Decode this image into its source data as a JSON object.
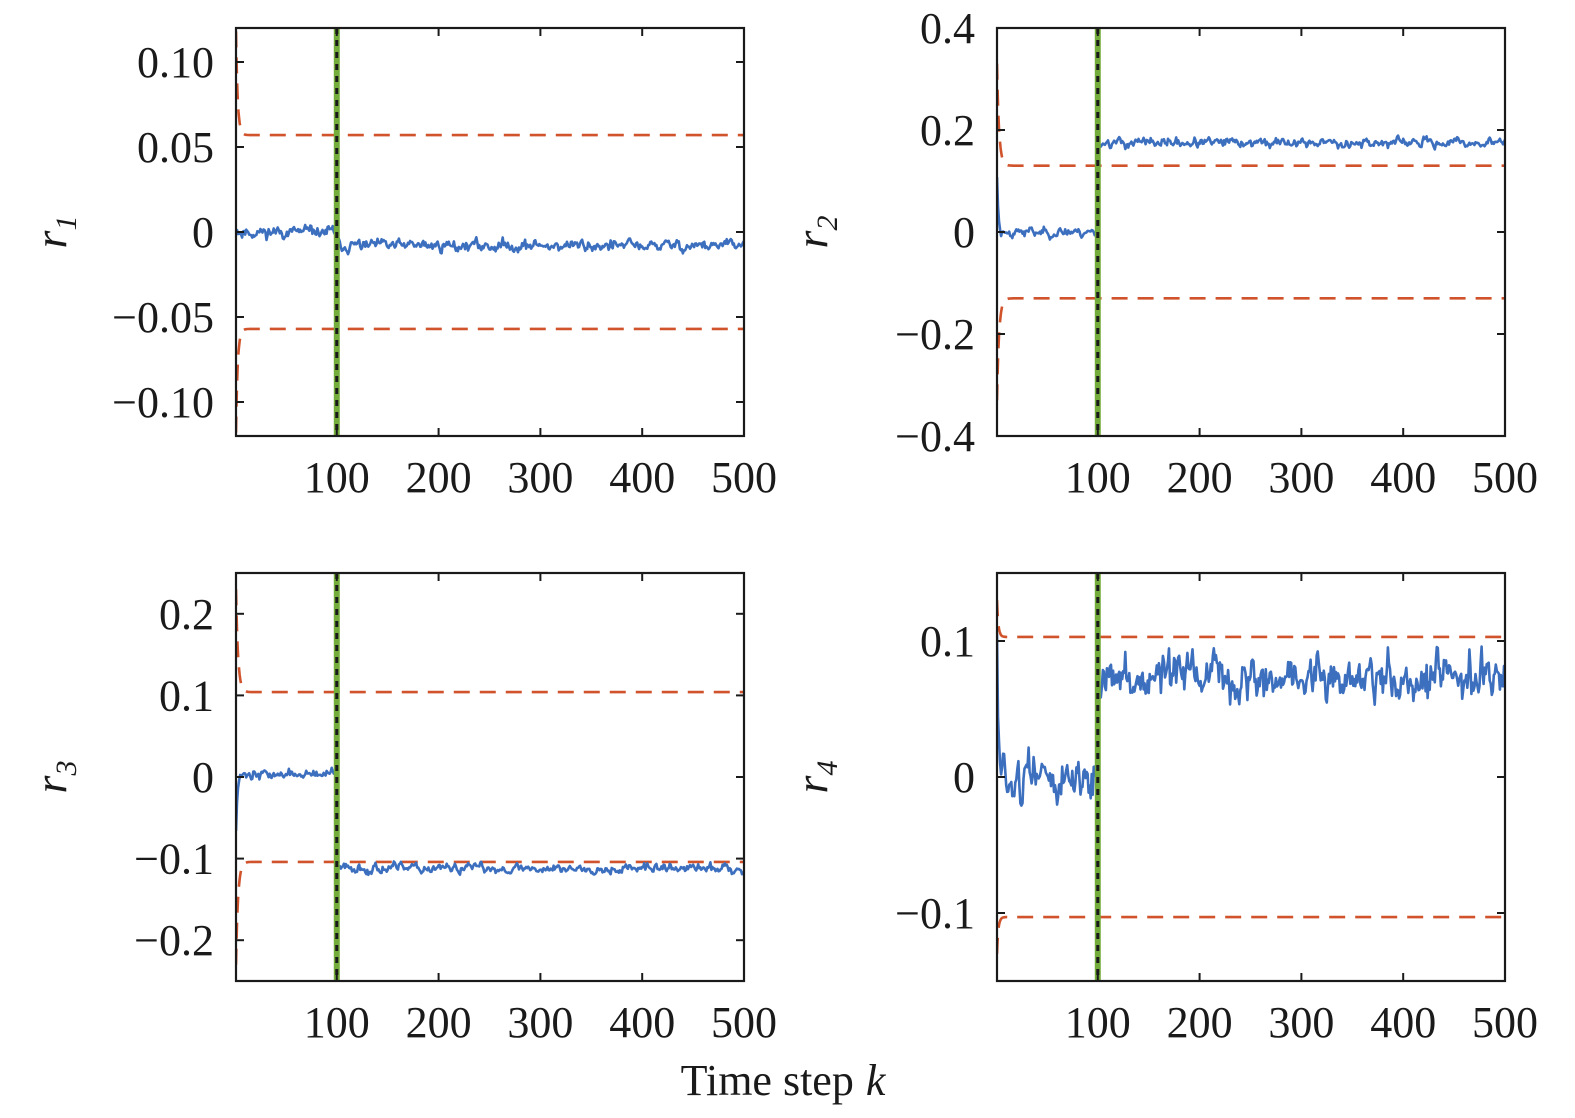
{
  "figure": {
    "xlabel": "Time step",
    "xlabel_var": "k"
  },
  "colors": {
    "signal": "#3d6fbf",
    "threshold": "#d0532b",
    "fault_marker_green": "#74ad3b",
    "fault_marker_black": "#1a1a1a",
    "axes": "#1a1a1a"
  },
  "chart_data": [
    {
      "type": "line",
      "id": "r1",
      "ylabel": "r",
      "ylabel_sub": "1",
      "xlim": [
        1,
        500
      ],
      "ylim": [
        -0.12,
        0.12
      ],
      "xticks": [
        100,
        200,
        300,
        400,
        500
      ],
      "yticks": [
        -0.1,
        -0.05,
        0,
        0.05,
        0.1
      ],
      "ytick_labels": [
        "−0.10",
        "−0.05",
        "0",
        "0.05",
        "0.10"
      ],
      "fault_step": 100,
      "threshold": {
        "steady": 0.057,
        "initial": 0.118,
        "settle_step": 5
      },
      "residual": {
        "pre_mean": 0.0,
        "post_mean": -0.008,
        "noise": 0.003,
        "init_spike": 0.004,
        "seed": 11
      },
      "series": [
        {
          "role": "residual"
        },
        {
          "role": "upper-threshold"
        },
        {
          "role": "lower-threshold"
        },
        {
          "role": "fault-time"
        }
      ]
    },
    {
      "type": "line",
      "id": "r2",
      "ylabel": "r",
      "ylabel_sub": "2",
      "xlim": [
        1,
        500
      ],
      "ylim": [
        -0.4,
        0.4
      ],
      "xticks": [
        100,
        200,
        300,
        400,
        500
      ],
      "yticks": [
        -0.4,
        -0.2,
        0,
        0.2,
        0.4
      ],
      "ytick_labels": [
        "−0.4",
        "−0.2",
        "0",
        "0.2",
        "0.4"
      ],
      "fault_step": 100,
      "threshold": {
        "steady": 0.13,
        "initial": 0.33,
        "settle_step": 6
      },
      "residual": {
        "pre_mean": 0.0,
        "post_mean": 0.175,
        "noise": 0.008,
        "init_spike": 0.11,
        "seed": 23
      },
      "series": [
        {
          "role": "residual"
        },
        {
          "role": "upper-threshold"
        },
        {
          "role": "lower-threshold"
        },
        {
          "role": "fault-time"
        }
      ]
    },
    {
      "type": "line",
      "id": "r3",
      "ylabel": "r",
      "ylabel_sub": "3",
      "xlim": [
        1,
        500
      ],
      "ylim": [
        -0.25,
        0.25
      ],
      "xticks": [
        100,
        200,
        300,
        400,
        500
      ],
      "yticks": [
        -0.2,
        -0.1,
        0,
        0.1,
        0.2
      ],
      "ytick_labels": [
        "−0.2",
        "−0.1",
        "0",
        "0.1",
        "0.2"
      ],
      "fault_step": 100,
      "threshold": {
        "steady": 0.104,
        "initial": 0.23,
        "settle_step": 6
      },
      "residual": {
        "pre_mean": 0.003,
        "post_mean": -0.112,
        "noise": 0.005,
        "init_spike": -0.065,
        "seed": 37
      },
      "series": [
        {
          "role": "residual"
        },
        {
          "role": "upper-threshold"
        },
        {
          "role": "lower-threshold"
        },
        {
          "role": "fault-time"
        }
      ]
    },
    {
      "type": "line",
      "id": "r4",
      "ylabel": "r",
      "ylabel_sub": "4",
      "xlim": [
        1,
        500
      ],
      "ylim": [
        -0.15,
        0.15
      ],
      "xticks": [
        100,
        200,
        300,
        400,
        500
      ],
      "yticks": [
        -0.1,
        0,
        0.1
      ],
      "ytick_labels": [
        "−0.1",
        "0",
        "0.1"
      ],
      "fault_step": 100,
      "threshold": {
        "steady": 0.103,
        "initial": 0.13,
        "settle_step": 4
      },
      "residual": {
        "pre_mean": 0.0,
        "post_mean": 0.072,
        "noise": 0.014,
        "init_spike": 0.1,
        "seed": 51
      },
      "series": [
        {
          "role": "residual"
        },
        {
          "role": "upper-threshold"
        },
        {
          "role": "lower-threshold"
        },
        {
          "role": "fault-time"
        }
      ]
    }
  ]
}
